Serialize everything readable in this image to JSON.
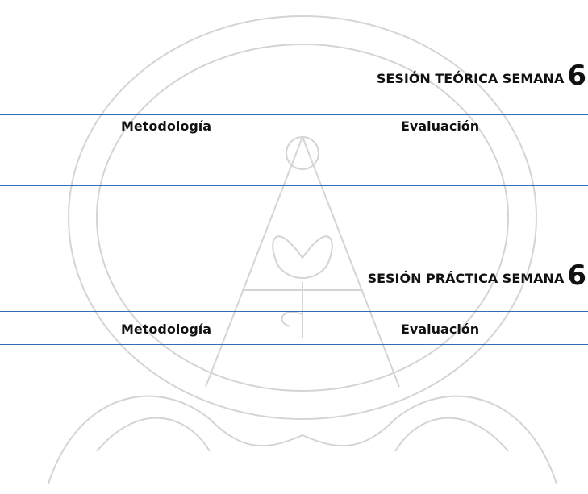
{
  "sections": [
    {
      "title": "SESIÓN TEÓRICA SEMANA",
      "number": "6",
      "columns": [
        "Metodología",
        "Evaluación"
      ]
    },
    {
      "title": "SESIÓN PRÁCTICA SEMANA",
      "number": "6",
      "columns": [
        "Metodología",
        "Evaluación"
      ]
    }
  ]
}
